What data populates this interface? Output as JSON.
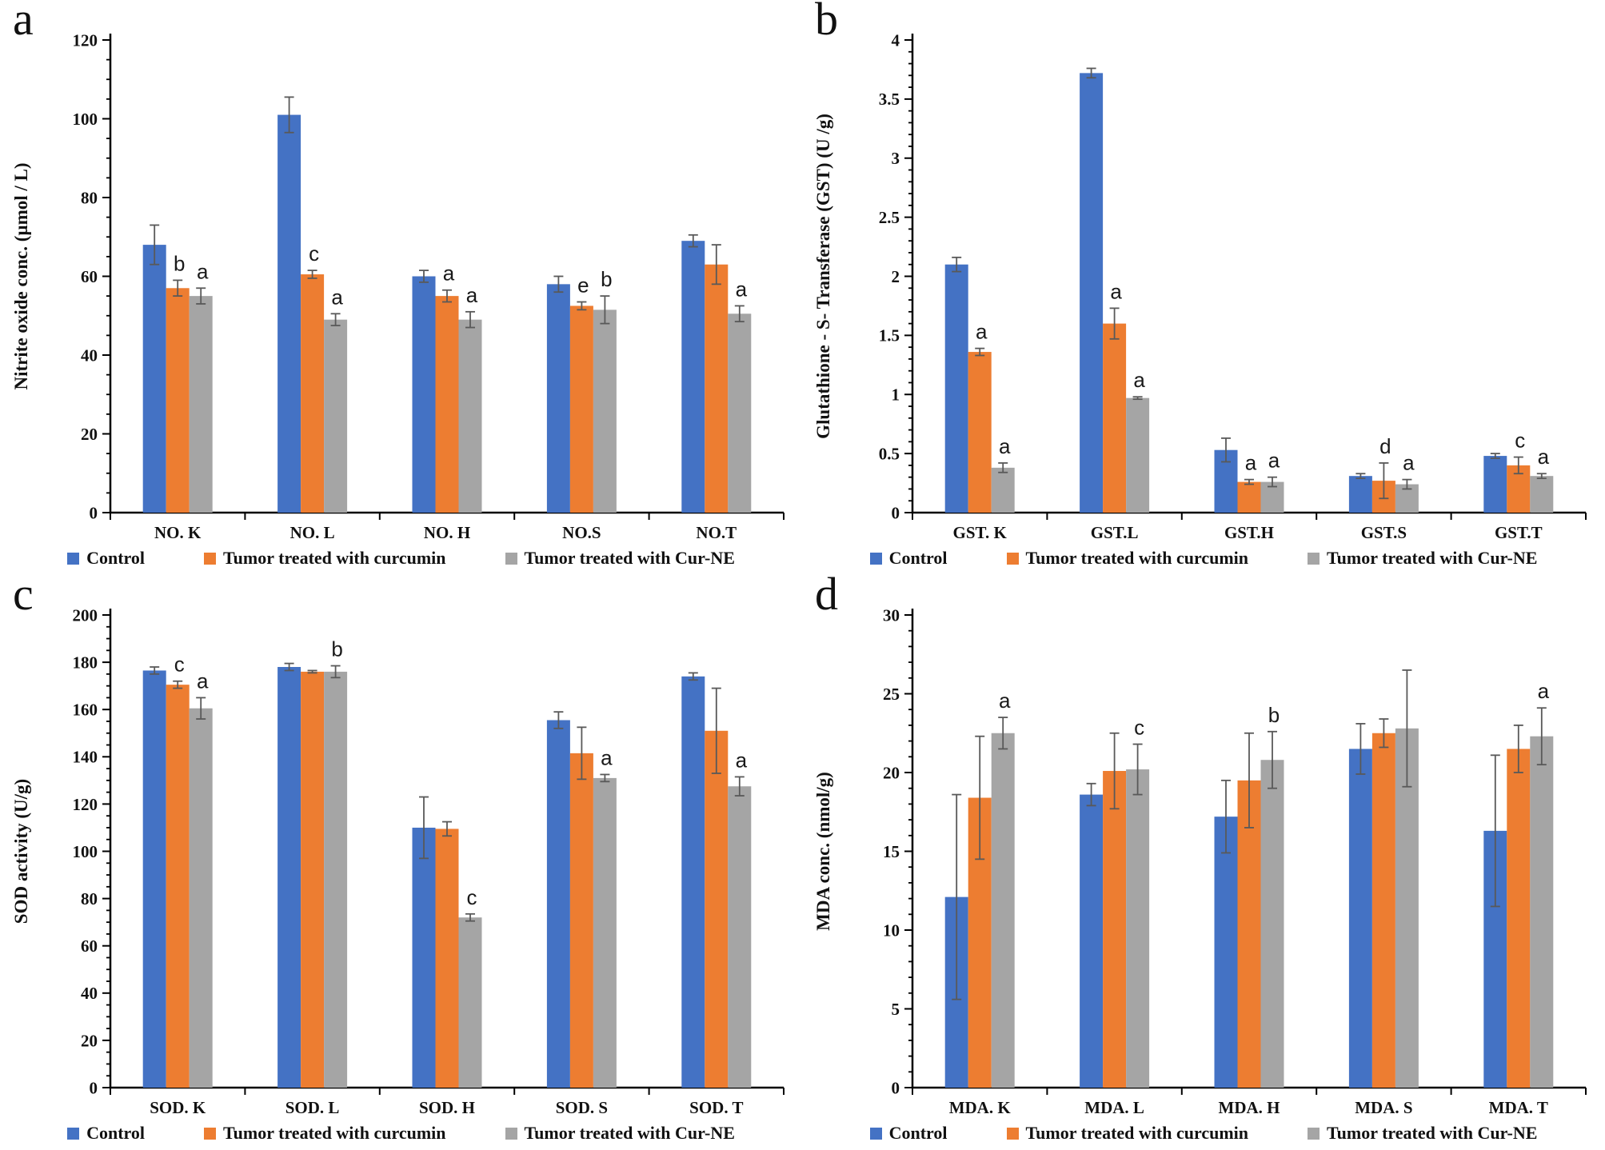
{
  "legend": [
    "Control",
    "Tumor treated with curcumin",
    "Tumor treated with Cur-NE"
  ],
  "colors": {
    "control": "#4472C4",
    "curcumin": "#ED7D31",
    "curne": "#A5A5A5",
    "error_bar": "#595959",
    "axis": "#000000"
  },
  "chart_data": [
    {
      "type": "bar",
      "panel_letter": "a",
      "ylabel": "Nitrite oxide conc. (µmol / L)",
      "xlabel": "",
      "ylim": [
        0,
        120
      ],
      "yticks": [
        0,
        20,
        40,
        60,
        80,
        100,
        120
      ],
      "minor_tick_step": 5,
      "grid": false,
      "legend_position": "bottom",
      "categories": [
        "NO. K",
        "NO. L",
        "NO. H",
        "NO.S",
        "NO.T"
      ],
      "series": [
        {
          "name": "Control",
          "color_key": "control",
          "values": [
            68,
            101,
            60,
            58,
            69
          ],
          "errors": [
            5,
            4.5,
            1.5,
            2,
            1.5
          ],
          "letters": [
            "",
            "",
            "",
            "",
            ""
          ]
        },
        {
          "name": "Tumor treated with curcumin",
          "color_key": "curcumin",
          "values": [
            57,
            60.5,
            55,
            52.5,
            63
          ],
          "errors": [
            2,
            1,
            1.5,
            1,
            5
          ],
          "letters": [
            "b",
            "c",
            "a",
            "e",
            ""
          ]
        },
        {
          "name": "Tumor treated with Cur-NE",
          "color_key": "curne",
          "values": [
            55,
            49,
            49,
            51.5,
            50.5
          ],
          "errors": [
            2,
            1.5,
            2,
            3.5,
            2
          ],
          "letters": [
            "a",
            "a",
            "a",
            "b",
            "a"
          ]
        }
      ]
    },
    {
      "type": "bar",
      "panel_letter": "b",
      "ylabel": "Glutathione - S- Transferase  (GST) (U /g)",
      "xlabel": "",
      "ylim": [
        0,
        4
      ],
      "yticks": [
        0,
        0.5,
        1,
        1.5,
        2,
        2.5,
        3,
        3.5,
        4
      ],
      "minor_tick_step": 0.1,
      "grid": false,
      "legend_position": "bottom",
      "categories": [
        "GST. K",
        "GST.L",
        "GST.H",
        "GST.S",
        "GST.T"
      ],
      "series": [
        {
          "name": "Control",
          "color_key": "control",
          "values": [
            2.1,
            3.72,
            0.53,
            0.31,
            0.48
          ],
          "errors": [
            0.06,
            0.04,
            0.1,
            0.02,
            0.02
          ],
          "letters": [
            "",
            "",
            "",
            "",
            ""
          ]
        },
        {
          "name": "Tumor treated with curcumin",
          "color_key": "curcumin",
          "values": [
            1.36,
            1.6,
            0.26,
            0.27,
            0.4
          ],
          "errors": [
            0.03,
            0.13,
            0.02,
            0.15,
            0.07
          ],
          "letters": [
            "a",
            "a",
            "a",
            "d",
            "c"
          ]
        },
        {
          "name": "Tumor treated with Cur-NE",
          "color_key": "curne",
          "values": [
            0.38,
            0.97,
            0.26,
            0.24,
            0.31
          ],
          "errors": [
            0.04,
            0.01,
            0.04,
            0.04,
            0.02
          ],
          "letters": [
            "a",
            "a",
            "a",
            "a",
            "a"
          ]
        }
      ]
    },
    {
      "type": "bar",
      "panel_letter": "c",
      "ylabel": "SOD activity (U/g)",
      "xlabel": "",
      "ylim": [
        0,
        200
      ],
      "yticks": [
        0,
        20,
        40,
        60,
        80,
        100,
        120,
        140,
        160,
        180,
        200
      ],
      "minor_tick_step": 5,
      "grid": false,
      "legend_position": "bottom",
      "categories": [
        "SOD. K",
        "SOD. L",
        "SOD. H",
        "SOD. S",
        "SOD. T"
      ],
      "series": [
        {
          "name": "Control",
          "color_key": "control",
          "values": [
            176.5,
            178,
            110,
            155.5,
            174
          ],
          "errors": [
            1.5,
            1.5,
            13,
            3.5,
            1.5
          ],
          "letters": [
            "",
            "",
            "",
            "",
            ""
          ]
        },
        {
          "name": "Tumor treated with curcumin",
          "color_key": "curcumin",
          "values": [
            170.5,
            176,
            109.5,
            141.5,
            151
          ],
          "errors": [
            1.5,
            0.5,
            3,
            11,
            18
          ],
          "letters": [
            "c",
            "",
            "",
            "",
            ""
          ]
        },
        {
          "name": "Tumor treated with Cur-NE",
          "color_key": "curne",
          "values": [
            160.5,
            176,
            72,
            131,
            127.5
          ],
          "errors": [
            4.5,
            2.5,
            1.5,
            1.5,
            4
          ],
          "letters": [
            "a",
            "b",
            "c",
            "a",
            "a"
          ]
        }
      ]
    },
    {
      "type": "bar",
      "panel_letter": "d",
      "ylabel": "MDA conc.  (nmol/g)",
      "xlabel": "",
      "ylim": [
        0,
        30
      ],
      "yticks": [
        0,
        5,
        10,
        15,
        20,
        25,
        30
      ],
      "minor_tick_step": 1,
      "grid": false,
      "legend_position": "bottom",
      "categories": [
        "MDA. K",
        "MDA. L",
        "MDA. H",
        "MDA. S",
        "MDA. T"
      ],
      "series": [
        {
          "name": "Control",
          "color_key": "control",
          "values": [
            12.1,
            18.6,
            17.2,
            21.5,
            16.3
          ],
          "errors": [
            6.5,
            0.7,
            2.3,
            1.6,
            4.8
          ],
          "letters": [
            "",
            "",
            "",
            "",
            ""
          ]
        },
        {
          "name": "Tumor treated with curcumin",
          "color_key": "curcumin",
          "values": [
            18.4,
            20.1,
            19.5,
            22.5,
            21.5
          ],
          "errors": [
            3.9,
            2.4,
            3,
            0.9,
            1.5
          ],
          "letters": [
            "",
            "",
            "",
            "",
            ""
          ]
        },
        {
          "name": "Tumor treated with Cur-NE",
          "color_key": "curne",
          "values": [
            22.5,
            20.2,
            20.8,
            22.8,
            22.3
          ],
          "errors": [
            1,
            1.6,
            1.8,
            3.7,
            1.8
          ],
          "letters": [
            "a",
            "c",
            "b",
            "",
            "a"
          ]
        }
      ]
    }
  ]
}
